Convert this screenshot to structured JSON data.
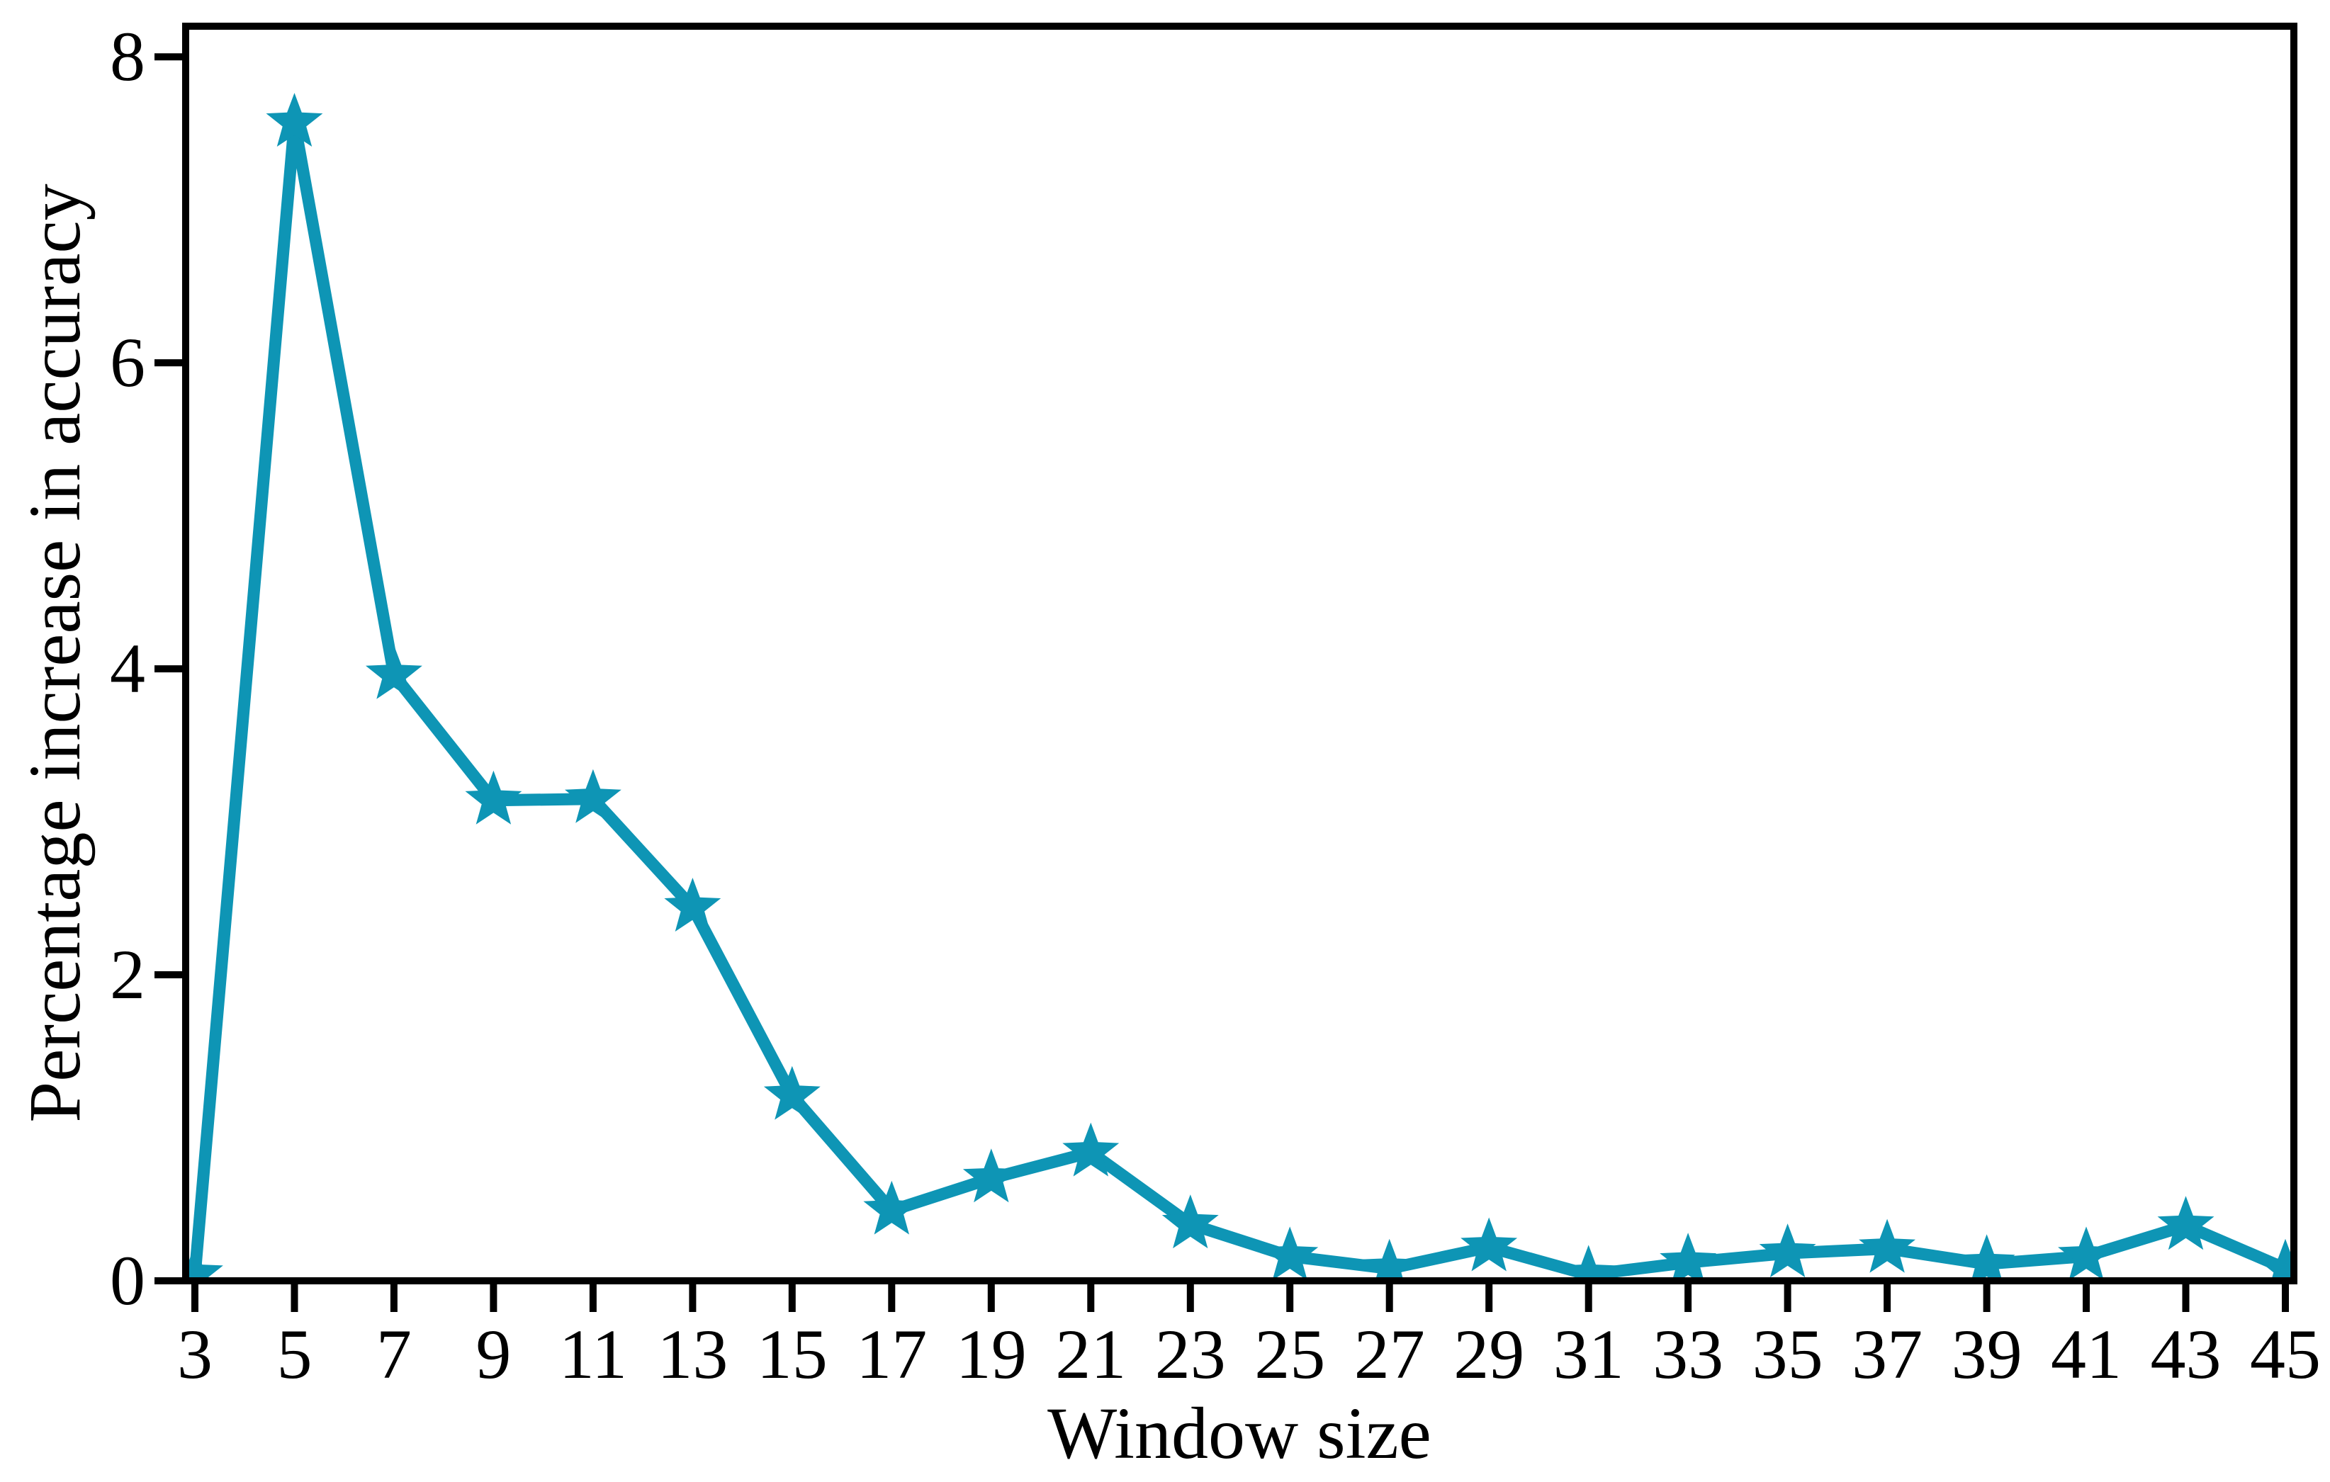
{
  "chart_data": {
    "type": "line",
    "title": "",
    "xlabel": "Window size",
    "ylabel": "Percentage increase in accuracy",
    "series": [
      {
        "name": "percentage-increase",
        "x": [
          3,
          5,
          7,
          9,
          11,
          13,
          15,
          17,
          19,
          21,
          23,
          25,
          27,
          29,
          31,
          33,
          35,
          37,
          39,
          41,
          43,
          45
        ],
        "y": [
          0.04,
          7.57,
          3.96,
          3.14,
          3.15,
          2.44,
          1.21,
          0.46,
          0.67,
          0.84,
          0.37,
          0.16,
          0.08,
          0.22,
          0.04,
          0.12,
          0.18,
          0.21,
          0.11,
          0.16,
          0.36,
          0.08
        ]
      }
    ],
    "x_ticks": [
      3,
      5,
      7,
      9,
      11,
      13,
      15,
      17,
      19,
      21,
      23,
      25,
      27,
      29,
      31,
      33,
      35,
      37,
      39,
      41,
      43,
      45
    ],
    "y_ticks": [
      0,
      2,
      4,
      6,
      8
    ],
    "xlim": [
      2.815,
      45.171
    ],
    "ylim": [
      0,
      8.2
    ],
    "grid": false,
    "legend_position": "none",
    "marker": "star",
    "line_color": "#0e95b5",
    "axis_color": "#000000",
    "background_color": "#ffffff"
  }
}
